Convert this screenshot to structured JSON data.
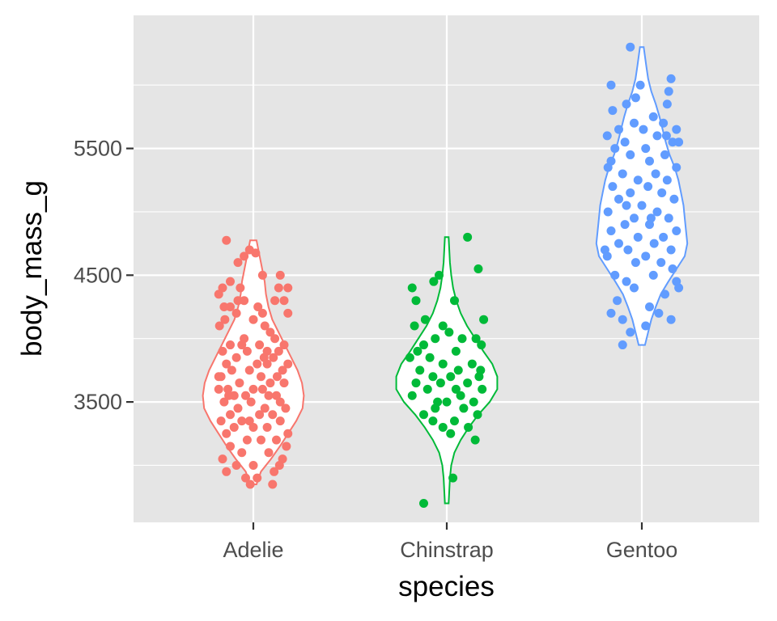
{
  "chart_data": {
    "type": "violin+jitter",
    "xlabel": "species",
    "ylabel": "body_mass_g",
    "categories": [
      "Adelie",
      "Chinstrap",
      "Gentoo"
    ],
    "ylim": [
      2550,
      6550
    ],
    "y_ticks": [
      3500,
      4500,
      5500
    ],
    "y_tick_labels": [
      "3500",
      "4500",
      "5500"
    ],
    "grid": true,
    "background": "#e5e5e5",
    "gridline_color": "#ffffff",
    "tick_color": "#333333",
    "series": [
      {
        "category": "Adelie",
        "color": "#f8766d",
        "violin": {
          "min": 2850,
          "max": 4775,
          "profile": [
            [
              2850,
              0.05
            ],
            [
              2950,
              0.12
            ],
            [
              3050,
              0.28
            ],
            [
              3150,
              0.42
            ],
            [
              3250,
              0.55
            ],
            [
              3350,
              0.68
            ],
            [
              3450,
              0.78
            ],
            [
              3550,
              0.8
            ],
            [
              3650,
              0.77
            ],
            [
              3750,
              0.7
            ],
            [
              3850,
              0.6
            ],
            [
              3950,
              0.5
            ],
            [
              4050,
              0.4
            ],
            [
              4150,
              0.3
            ],
            [
              4250,
              0.24
            ],
            [
              4350,
              0.2
            ],
            [
              4450,
              0.18
            ],
            [
              4550,
              0.14
            ],
            [
              4650,
              0.1
            ],
            [
              4775,
              0.05
            ]
          ]
        },
        "points": [
          [
            -0.35,
            4775
          ],
          [
            -0.05,
            4700
          ],
          [
            0.03,
            4675
          ],
          [
            -0.12,
            4650
          ],
          [
            -0.2,
            4600
          ],
          [
            0.12,
            4500
          ],
          [
            0.35,
            4500
          ],
          [
            -0.3,
            4450
          ],
          [
            0.45,
            4400
          ],
          [
            -0.4,
            4400
          ],
          [
            0.33,
            4400
          ],
          [
            -0.45,
            4350
          ],
          [
            -0.2,
            4300
          ],
          [
            -0.12,
            4300
          ],
          [
            0.28,
            4300
          ],
          [
            0.4,
            4300
          ],
          [
            -0.38,
            4250
          ],
          [
            0.06,
            4250
          ],
          [
            -0.3,
            4250
          ],
          [
            0.45,
            4200
          ],
          [
            -0.22,
            4200
          ],
          [
            -0.37,
            4150
          ],
          [
            0.0,
            4150
          ],
          [
            -0.44,
            4100
          ],
          [
            0.15,
            4100
          ],
          [
            0.22,
            4050
          ],
          [
            -0.12,
            4000
          ],
          [
            0.28,
            4000
          ],
          [
            -0.3,
            3950
          ],
          [
            0.4,
            3950
          ],
          [
            -0.15,
            3950
          ],
          [
            0.08,
            3950
          ],
          [
            0.33,
            3900
          ],
          [
            -0.4,
            3900
          ],
          [
            -0.08,
            3900
          ],
          [
            0.14,
            3850
          ],
          [
            -0.22,
            3850
          ],
          [
            0.26,
            3850
          ],
          [
            0.45,
            3800
          ],
          [
            -0.35,
            3800
          ],
          [
            0.05,
            3800
          ],
          [
            0.18,
            3800
          ],
          [
            -0.05,
            3750
          ],
          [
            0.38,
            3750
          ],
          [
            -0.28,
            3750
          ],
          [
            0.31,
            3700
          ],
          [
            -0.42,
            3700
          ],
          [
            0.1,
            3700
          ],
          [
            -0.18,
            3650
          ],
          [
            0.22,
            3650
          ],
          [
            0.4,
            3650
          ],
          [
            -0.33,
            3600
          ],
          [
            0.0,
            3600
          ],
          [
            -0.45,
            3600
          ],
          [
            0.12,
            3600
          ],
          [
            0.3,
            3550
          ],
          [
            -0.25,
            3550
          ],
          [
            -0.1,
            3550
          ],
          [
            0.2,
            3550
          ],
          [
            0.35,
            3500
          ],
          [
            -0.38,
            3500
          ],
          [
            -0.03,
            3500
          ],
          [
            0.15,
            3450
          ],
          [
            -0.2,
            3450
          ],
          [
            0.42,
            3450
          ],
          [
            -0.3,
            3400
          ],
          [
            0.08,
            3400
          ],
          [
            0.25,
            3400
          ],
          [
            -0.15,
            3350
          ],
          [
            0.35,
            3350
          ],
          [
            -0.42,
            3350
          ],
          [
            0.0,
            3300
          ],
          [
            -0.25,
            3300
          ],
          [
            0.18,
            3300
          ],
          [
            0.45,
            3250
          ],
          [
            -0.35,
            3250
          ],
          [
            0.1,
            3200
          ],
          [
            -0.08,
            3200
          ],
          [
            0.3,
            3200
          ],
          [
            -0.3,
            3150
          ],
          [
            0.43,
            3150
          ],
          [
            -0.15,
            3100
          ],
          [
            0.2,
            3100
          ],
          [
            -0.4,
            3050
          ],
          [
            0.38,
            3050
          ],
          [
            0.0,
            3000
          ],
          [
            -0.22,
            3000
          ],
          [
            0.27,
            2950
          ],
          [
            -0.35,
            2950
          ],
          [
            0.05,
            2900
          ],
          [
            -0.1,
            2900
          ],
          [
            -0.04,
            2850
          ],
          [
            0.25,
            2850
          ],
          [
            -0.32,
            3550
          ],
          [
            0.18,
            3900
          ],
          [
            -0.05,
            3350
          ],
          [
            0.12,
            4200
          ],
          [
            -0.45,
            3700
          ],
          [
            0.34,
            3000
          ],
          [
            -0.17,
            4400
          ]
        ]
      },
      {
        "category": "Chinstrap",
        "color": "#00ba38",
        "violin": {
          "min": 2700,
          "max": 4800,
          "profile": [
            [
              2700,
              0.03
            ],
            [
              2800,
              0.04
            ],
            [
              2900,
              0.05
            ],
            [
              3000,
              0.07
            ],
            [
              3100,
              0.12
            ],
            [
              3200,
              0.22
            ],
            [
              3300,
              0.35
            ],
            [
              3400,
              0.5
            ],
            [
              3500,
              0.68
            ],
            [
              3600,
              0.8
            ],
            [
              3700,
              0.8
            ],
            [
              3800,
              0.72
            ],
            [
              3900,
              0.58
            ],
            [
              4000,
              0.45
            ],
            [
              4100,
              0.32
            ],
            [
              4200,
              0.22
            ],
            [
              4300,
              0.15
            ],
            [
              4400,
              0.1
            ],
            [
              4500,
              0.07
            ],
            [
              4600,
              0.05
            ],
            [
              4700,
              0.04
            ],
            [
              4800,
              0.03
            ]
          ]
        },
        "points": [
          [
            0.27,
            4800
          ],
          [
            0.41,
            4550
          ],
          [
            -0.1,
            4500
          ],
          [
            -0.17,
            4450
          ],
          [
            -0.45,
            4400
          ],
          [
            -0.4,
            4300
          ],
          [
            0.1,
            4300
          ],
          [
            0.48,
            4150
          ],
          [
            -0.28,
            4150
          ],
          [
            -0.42,
            4100
          ],
          [
            -0.05,
            4100
          ],
          [
            0.03,
            4050
          ],
          [
            0.38,
            4000
          ],
          [
            -0.15,
            4000
          ],
          [
            0.2,
            4000
          ],
          [
            -0.3,
            3950
          ],
          [
            0.45,
            3950
          ],
          [
            0.12,
            3900
          ],
          [
            -0.22,
            3850
          ],
          [
            -0.48,
            3850
          ],
          [
            0.33,
            3800
          ],
          [
            -0.05,
            3800
          ],
          [
            0.15,
            3750
          ],
          [
            -0.35,
            3750
          ],
          [
            0.42,
            3700
          ],
          [
            -0.18,
            3700
          ],
          [
            0.05,
            3700
          ],
          [
            0.27,
            3650
          ],
          [
            -0.4,
            3650
          ],
          [
            -0.08,
            3650
          ],
          [
            0.46,
            3600
          ],
          [
            -0.25,
            3600
          ],
          [
            0.18,
            3550
          ],
          [
            -0.45,
            3550
          ],
          [
            0.0,
            3500
          ],
          [
            0.35,
            3500
          ],
          [
            -0.15,
            3450
          ],
          [
            0.22,
            3450
          ],
          [
            -0.3,
            3400
          ],
          [
            0.4,
            3400
          ],
          [
            0.1,
            3350
          ],
          [
            -0.18,
            3350
          ],
          [
            0.28,
            3300
          ],
          [
            -0.05,
            3300
          ],
          [
            0.05,
            3250
          ],
          [
            0.37,
            3200
          ],
          [
            0.08,
            2900
          ],
          [
            -0.3,
            2700
          ],
          [
            0.44,
            3750
          ],
          [
            -0.38,
            3900
          ],
          [
            0.12,
            3600
          ],
          [
            -0.12,
            3500
          ]
        ]
      },
      {
        "category": "Gentoo",
        "color": "#619cff",
        "violin": {
          "min": 3950,
          "max": 6300,
          "profile": [
            [
              3950,
              0.05
            ],
            [
              4050,
              0.1
            ],
            [
              4150,
              0.15
            ],
            [
              4250,
              0.22
            ],
            [
              4350,
              0.3
            ],
            [
              4450,
              0.42
            ],
            [
              4550,
              0.55
            ],
            [
              4650,
              0.68
            ],
            [
              4750,
              0.72
            ],
            [
              4850,
              0.7
            ],
            [
              4950,
              0.68
            ],
            [
              5050,
              0.66
            ],
            [
              5150,
              0.62
            ],
            [
              5250,
              0.58
            ],
            [
              5350,
              0.52
            ],
            [
              5450,
              0.44
            ],
            [
              5550,
              0.38
            ],
            [
              5650,
              0.33
            ],
            [
              5750,
              0.28
            ],
            [
              5850,
              0.22
            ],
            [
              5950,
              0.15
            ],
            [
              6050,
              0.1
            ],
            [
              6150,
              0.07
            ],
            [
              6300,
              0.03
            ]
          ]
        },
        "points": [
          [
            -0.15,
            6300
          ],
          [
            0.38,
            6050
          ],
          [
            -0.4,
            6000
          ],
          [
            -0.02,
            6000
          ],
          [
            0.35,
            5950
          ],
          [
            -0.2,
            5850
          ],
          [
            0.33,
            5850
          ],
          [
            -0.38,
            5800
          ],
          [
            0.15,
            5750
          ],
          [
            -0.1,
            5700
          ],
          [
            0.28,
            5700
          ],
          [
            -0.3,
            5650
          ],
          [
            0.45,
            5650
          ],
          [
            0.02,
            5650
          ],
          [
            -0.45,
            5600
          ],
          [
            0.2,
            5600
          ],
          [
            -0.22,
            5550
          ],
          [
            0.4,
            5550
          ],
          [
            0.05,
            5500
          ],
          [
            -0.35,
            5500
          ],
          [
            0.3,
            5450
          ],
          [
            -0.15,
            5450
          ],
          [
            0.1,
            5400
          ],
          [
            -0.4,
            5400
          ],
          [
            0.45,
            5350
          ],
          [
            -0.25,
            5300
          ],
          [
            0.18,
            5300
          ],
          [
            -0.05,
            5250
          ],
          [
            0.33,
            5250
          ],
          [
            -0.38,
            5200
          ],
          [
            0.08,
            5200
          ],
          [
            -0.15,
            5150
          ],
          [
            0.26,
            5150
          ],
          [
            0.42,
            5100
          ],
          [
            -0.3,
            5100
          ],
          [
            0.0,
            5050
          ],
          [
            -0.44,
            5000
          ],
          [
            0.2,
            5000
          ],
          [
            -0.1,
            4950
          ],
          [
            0.35,
            4950
          ],
          [
            -0.22,
            4900
          ],
          [
            0.1,
            4900
          ],
          [
            0.45,
            4850
          ],
          [
            -0.4,
            4850
          ],
          [
            0.28,
            4800
          ],
          [
            -0.05,
            4800
          ],
          [
            -0.3,
            4750
          ],
          [
            0.16,
            4750
          ],
          [
            0.38,
            4700
          ],
          [
            -0.18,
            4700
          ],
          [
            0.05,
            4650
          ],
          [
            -0.45,
            4650
          ],
          [
            0.25,
            4600
          ],
          [
            -0.08,
            4600
          ],
          [
            0.4,
            4550
          ],
          [
            -0.35,
            4500
          ],
          [
            0.15,
            4500
          ],
          [
            -0.2,
            4450
          ],
          [
            0.48,
            4400
          ],
          [
            -0.1,
            4400
          ],
          [
            0.3,
            4350
          ],
          [
            -0.32,
            4300
          ],
          [
            0.1,
            4250
          ],
          [
            -0.4,
            4200
          ],
          [
            0.22,
            4200
          ],
          [
            0.38,
            4150
          ],
          [
            -0.25,
            4150
          ],
          [
            0.05,
            4100
          ],
          [
            -0.15,
            4050
          ],
          [
            -0.25,
            3950
          ],
          [
            0.45,
            4450
          ],
          [
            -0.48,
            4700
          ],
          [
            0.32,
            5600
          ],
          [
            -0.08,
            5900
          ],
          [
            0.48,
            5550
          ],
          [
            -0.44,
            5350
          ],
          [
            0.12,
            4950
          ],
          [
            -0.2,
            5050
          ]
        ]
      }
    ]
  }
}
